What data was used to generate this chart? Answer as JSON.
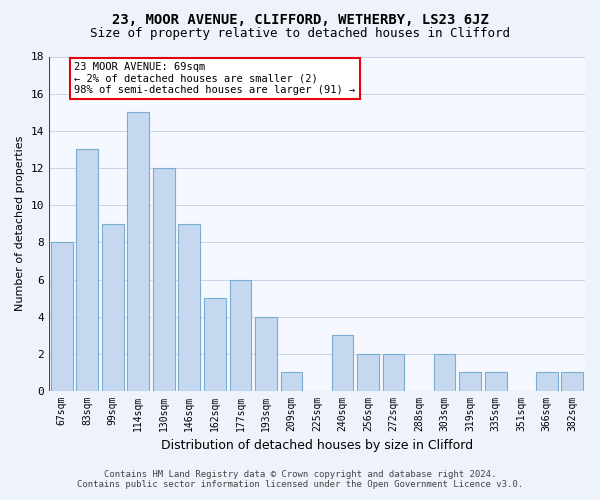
{
  "title": "23, MOOR AVENUE, CLIFFORD, WETHERBY, LS23 6JZ",
  "subtitle": "Size of property relative to detached houses in Clifford",
  "xlabel": "Distribution of detached houses by size in Clifford",
  "ylabel": "Number of detached properties",
  "bar_labels": [
    "67sqm",
    "83sqm",
    "99sqm",
    "114sqm",
    "130sqm",
    "146sqm",
    "162sqm",
    "177sqm",
    "193sqm",
    "209sqm",
    "225sqm",
    "240sqm",
    "256sqm",
    "272sqm",
    "288sqm",
    "303sqm",
    "319sqm",
    "335sqm",
    "351sqm",
    "366sqm",
    "382sqm"
  ],
  "bar_values": [
    8,
    13,
    9,
    15,
    12,
    9,
    5,
    6,
    4,
    1,
    0,
    3,
    2,
    2,
    0,
    2,
    1,
    1,
    0,
    1,
    1
  ],
  "bar_color": "#c5d8f0",
  "bar_edge_color": "#7aadd4",
  "annotation_text_line1": "23 MOOR AVENUE: 69sqm",
  "annotation_text_line2": "← 2% of detached houses are smaller (2)",
  "annotation_text_line3": "98% of semi-detached houses are larger (91) →",
  "annotation_box_color": "#e8000d",
  "ylim": [
    0,
    18
  ],
  "yticks": [
    0,
    2,
    4,
    6,
    8,
    10,
    12,
    14,
    16,
    18
  ],
  "footer_line1": "Contains HM Land Registry data © Crown copyright and database right 2024.",
  "footer_line2": "Contains public sector information licensed under the Open Government Licence v3.0.",
  "bg_color": "#eef2fa",
  "plot_bg_color": "#f5f8fe",
  "grid_color": "#c8d4e8"
}
